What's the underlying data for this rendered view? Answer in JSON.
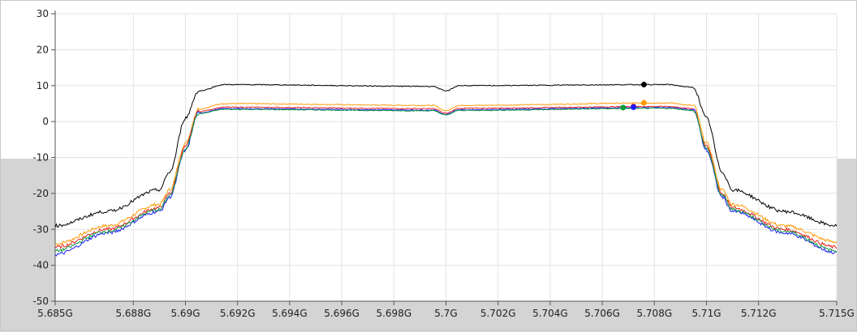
{
  "chart_data": {
    "type": "line",
    "title": "",
    "xlabel": "",
    "ylabel": "",
    "xlim": [
      5.685,
      5.715
    ],
    "ylim": [
      -50,
      30
    ],
    "grid": true,
    "x_ticks": [
      {
        "value": 5.685,
        "label": "5.685G"
      },
      {
        "value": 5.688,
        "label": "5.688G"
      },
      {
        "value": 5.69,
        "label": "5.69G"
      },
      {
        "value": 5.692,
        "label": "5.692G"
      },
      {
        "value": 5.694,
        "label": "5.694G"
      },
      {
        "value": 5.696,
        "label": "5.696G"
      },
      {
        "value": 5.698,
        "label": "5.698G"
      },
      {
        "value": 5.7,
        "label": "5.7G"
      },
      {
        "value": 5.702,
        "label": "5.702G"
      },
      {
        "value": 5.704,
        "label": "5.704G"
      },
      {
        "value": 5.706,
        "label": "5.706G"
      },
      {
        "value": 5.708,
        "label": "5.708G"
      },
      {
        "value": 5.71,
        "label": "5.71G"
      },
      {
        "value": 5.712,
        "label": "5.712G"
      },
      {
        "value": 5.715,
        "label": "5.715G"
      }
    ],
    "y_ticks": [
      {
        "value": 30,
        "label": "30"
      },
      {
        "value": 20,
        "label": "20"
      },
      {
        "value": 10,
        "label": "10"
      },
      {
        "value": 0,
        "label": "0"
      },
      {
        "value": -10,
        "label": "-10"
      },
      {
        "value": -20,
        "label": "-20"
      },
      {
        "value": -30,
        "label": "-30"
      },
      {
        "value": -40,
        "label": "-40"
      },
      {
        "value": -50,
        "label": "-50"
      }
    ],
    "series": [
      {
        "color": "#000000",
        "x": [
          5.685,
          5.687,
          5.689,
          5.6894,
          5.69,
          5.6905,
          5.6915,
          5.6995,
          5.7,
          5.7005,
          5.7085,
          5.7095,
          5.71,
          5.7106,
          5.711,
          5.713,
          5.715
        ],
        "y": [
          -29,
          -25,
          -19,
          -14,
          1,
          8.5,
          10.3,
          9.8,
          8.5,
          10,
          10.3,
          9.5,
          1,
          -14,
          -19,
          -25,
          -29
        ],
        "marker": {
          "x": 5.7076,
          "y": 10.3
        }
      },
      {
        "color": "#ff9900",
        "x": [
          5.685,
          5.687,
          5.689,
          5.6894,
          5.69,
          5.6905,
          5.6915,
          5.6995,
          5.7,
          5.7005,
          5.7085,
          5.7095,
          5.71,
          5.7106,
          5.711,
          5.713,
          5.715
        ],
        "y": [
          -34,
          -29,
          -23,
          -19,
          -6,
          3.5,
          5,
          4.5,
          3,
          4.5,
          5.2,
          4.5,
          -6,
          -19,
          -23,
          -29,
          -33.5
        ],
        "marker": {
          "x": 5.7076,
          "y": 5.2
        }
      },
      {
        "color": "#e8231f",
        "x": [
          5.685,
          5.687,
          5.689,
          5.6894,
          5.69,
          5.6905,
          5.6915,
          5.6995,
          5.7,
          5.7005,
          5.7085,
          5.7095,
          5.71,
          5.7106,
          5.711,
          5.713,
          5.715
        ],
        "y": [
          -35,
          -30,
          -24,
          -20,
          -7,
          2.8,
          4,
          3.6,
          2.3,
          3.7,
          4.2,
          3.6,
          -7,
          -20,
          -24,
          -30,
          -35
        ],
        "marker": {
          "x": 5.7072,
          "y": 4.2
        }
      },
      {
        "color": "#1a1aff",
        "x": [
          5.685,
          5.687,
          5.689,
          5.6894,
          5.69,
          5.6905,
          5.6915,
          5.6995,
          5.7,
          5.7005,
          5.7085,
          5.7095,
          5.71,
          5.7106,
          5.711,
          5.713,
          5.715
        ],
        "y": [
          -37,
          -31,
          -25,
          -21,
          -8,
          2.4,
          3.6,
          3.2,
          2,
          3.3,
          3.9,
          3.3,
          -8,
          -21,
          -25,
          -31,
          -36.5
        ],
        "marker": {
          "x": 5.7072,
          "y": 4.0
        }
      },
      {
        "color": "#0f9a3c",
        "x": [
          5.685,
          5.687,
          5.689,
          5.6894,
          5.69,
          5.6905,
          5.6915,
          5.6995,
          5.7,
          5.7005,
          5.7085,
          5.7095,
          5.71,
          5.7106,
          5.711,
          5.713,
          5.715
        ],
        "y": [
          -36,
          -30.5,
          -24.5,
          -20.5,
          -7.5,
          2.2,
          3.4,
          3,
          1.8,
          3.1,
          3.7,
          3.1,
          -7.5,
          -20.5,
          -24.5,
          -30.5,
          -36
        ],
        "marker": {
          "x": 5.7068,
          "y": 3.9
        }
      }
    ]
  }
}
